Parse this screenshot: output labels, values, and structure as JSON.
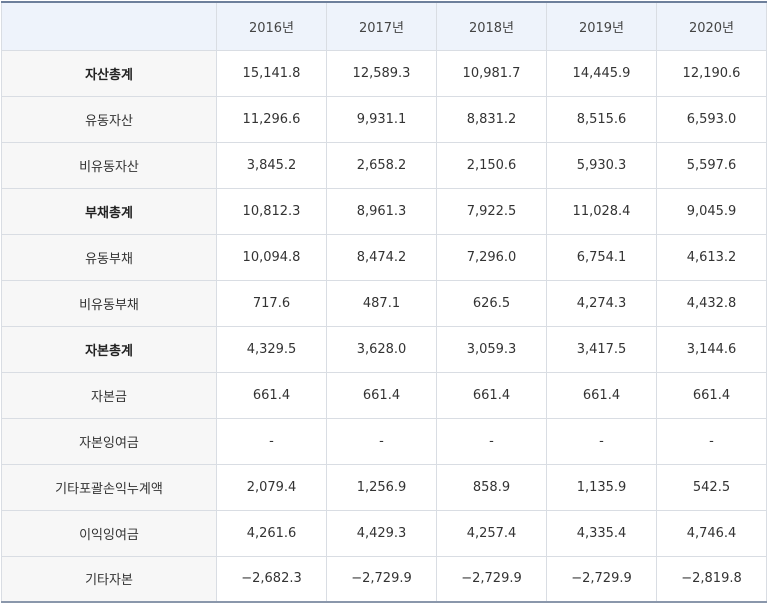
{
  "header": {
    "corner": "",
    "years": [
      "2016년",
      "2017년",
      "2018년",
      "2019년",
      "2020년"
    ]
  },
  "rows": [
    {
      "label": "자산총계",
      "bold": true,
      "values": [
        "15,141.8",
        "12,589.3",
        "10,981.7",
        "14,445.9",
        "12,190.6"
      ]
    },
    {
      "label": "유동자산",
      "bold": false,
      "values": [
        "11,296.6",
        "9,931.1",
        "8,831.2",
        "8,515.6",
        "6,593.0"
      ]
    },
    {
      "label": "비유동자산",
      "bold": false,
      "values": [
        "3,845.2",
        "2,658.2",
        "2,150.6",
        "5,930.3",
        "5,597.6"
      ]
    },
    {
      "label": "부채총계",
      "bold": true,
      "values": [
        "10,812.3",
        "8,961.3",
        "7,922.5",
        "11,028.4",
        "9,045.9"
      ]
    },
    {
      "label": "유동부채",
      "bold": false,
      "values": [
        "10,094.8",
        "8,474.2",
        "7,296.0",
        "6,754.1",
        "4,613.2"
      ]
    },
    {
      "label": "비유동부채",
      "bold": false,
      "values": [
        "717.6",
        "487.1",
        "626.5",
        "4,274.3",
        "4,432.8"
      ]
    },
    {
      "label": "자본총계",
      "bold": true,
      "values": [
        "4,329.5",
        "3,628.0",
        "3,059.3",
        "3,417.5",
        "3,144.6"
      ]
    },
    {
      "label": "자본금",
      "bold": false,
      "values": [
        "661.4",
        "661.4",
        "661.4",
        "661.4",
        "661.4"
      ]
    },
    {
      "label": "자본잉여금",
      "bold": false,
      "values": [
        "-",
        "-",
        "-",
        "-",
        "-"
      ]
    },
    {
      "label": "기타포괄손익누계액",
      "bold": false,
      "values": [
        "2,079.4",
        "1,256.9",
        "858.9",
        "1,135.9",
        "542.5"
      ]
    },
    {
      "label": "이익잉여금",
      "bold": false,
      "values": [
        "4,261.6",
        "4,429.3",
        "4,257.4",
        "4,335.4",
        "4,746.4"
      ]
    },
    {
      "label": "기타자본",
      "bold": false,
      "values": [
        "−2,682.3",
        "−2,729.9",
        "−2,729.9",
        "−2,729.9",
        "−2,819.8"
      ]
    }
  ]
}
